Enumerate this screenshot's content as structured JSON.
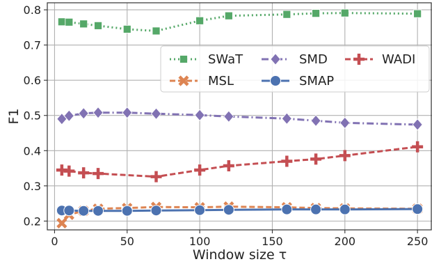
{
  "chart_data": {
    "type": "line",
    "xlabel": "Window size τ",
    "ylabel": "F1",
    "xlim": [
      -5,
      260
    ],
    "ylim": [
      0.175,
      0.82
    ],
    "xticks": [
      0,
      50,
      100,
      150,
      200,
      250
    ],
    "yticks": [
      0.2,
      0.3,
      0.4,
      0.5,
      0.6,
      0.7,
      0.8
    ],
    "grid": true,
    "legend_position": "top-right",
    "legend_columns": 3,
    "x": [
      5,
      10,
      20,
      30,
      50,
      70,
      100,
      120,
      160,
      180,
      200,
      250
    ],
    "series": [
      {
        "name": "SWaT",
        "color": "#55a868",
        "linestyle": "dotted",
        "marker": "square",
        "values": [
          0.766,
          0.765,
          0.76,
          0.755,
          0.745,
          0.74,
          0.769,
          0.783,
          0.787,
          0.79,
          0.791,
          0.789
        ]
      },
      {
        "name": "SMD",
        "color": "#8172b3",
        "linestyle": "dashdot",
        "marker": "diamond",
        "values": [
          0.49,
          0.499,
          0.506,
          0.508,
          0.508,
          0.505,
          0.501,
          0.497,
          0.491,
          0.485,
          0.479,
          0.474
        ]
      },
      {
        "name": "WADI",
        "color": "#c44e52",
        "linestyle": "dashed",
        "marker": "plus",
        "values": [
          0.345,
          0.342,
          0.337,
          0.335,
          null,
          0.326,
          0.345,
          0.357,
          0.37,
          0.376,
          0.386,
          0.411
        ]
      },
      {
        "name": "MSL",
        "color": "#dd8452",
        "linestyle": "dashed",
        "marker": "x",
        "values": [
          0.194,
          0.218,
          0.229,
          0.235,
          0.237,
          0.24,
          0.239,
          0.241,
          0.239,
          0.237,
          0.236,
          0.235
        ]
      },
      {
        "name": "SMAP",
        "color": "#4c72b0",
        "linestyle": "solid",
        "marker": "circle",
        "values": [
          0.23,
          0.23,
          0.229,
          0.229,
          0.229,
          0.23,
          0.231,
          0.232,
          0.233,
          0.233,
          0.233,
          0.234
        ]
      }
    ]
  }
}
